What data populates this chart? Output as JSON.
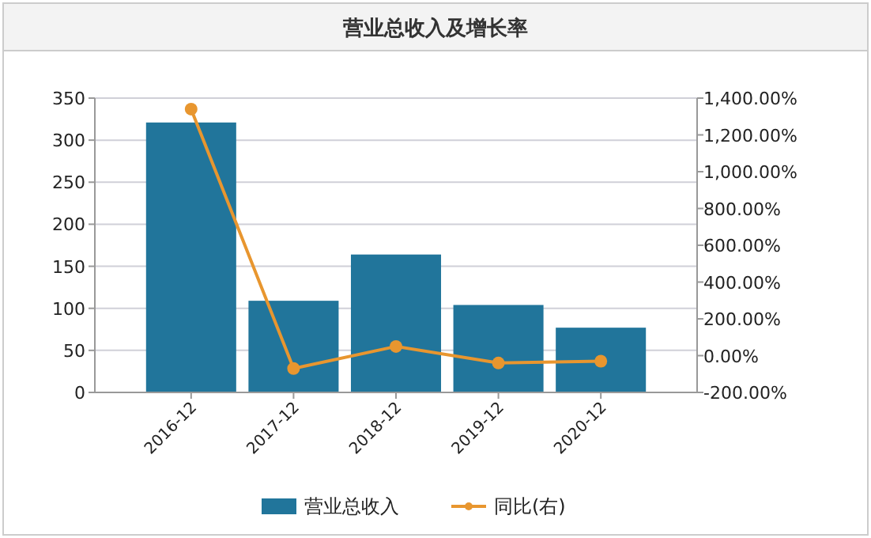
{
  "chart_data": {
    "type": "bar",
    "title": "营业总收入及增长率",
    "categories": [
      "2016-12",
      "2017-12",
      "2018-12",
      "2019-12",
      "2020-12"
    ],
    "series": [
      {
        "name": "营业总收入",
        "color": "#21759b",
        "values": [
          321,
          109,
          164,
          104,
          77
        ]
      },
      {
        "name": "同比(右)",
        "type": "line",
        "axis": "y2",
        "color": "#e8962f",
        "values": [
          1340,
          -70,
          50,
          -40,
          -30
        ]
      }
    ],
    "ylim": [
      0,
      350
    ],
    "yticks": [
      0,
      50,
      100,
      150,
      200,
      250,
      300,
      350
    ],
    "y2lim": [
      -200,
      1400
    ],
    "y2ticks": [
      {
        "value": -200,
        "label": "-200.00%"
      },
      {
        "value": 0,
        "label": "0.00%"
      },
      {
        "value": 200,
        "label": "200.00%"
      },
      {
        "value": 400,
        "label": "400.00%"
      },
      {
        "value": 600,
        "label": "600.00%"
      },
      {
        "value": 800,
        "label": "800.00%"
      },
      {
        "value": 1000,
        "label": "1,000.00%"
      },
      {
        "value": 1200,
        "label": "1,200.00%"
      },
      {
        "value": 1400,
        "label": "1,400.00%"
      }
    ],
    "grid": "y",
    "legend": "bottom",
    "marker": "circle"
  }
}
